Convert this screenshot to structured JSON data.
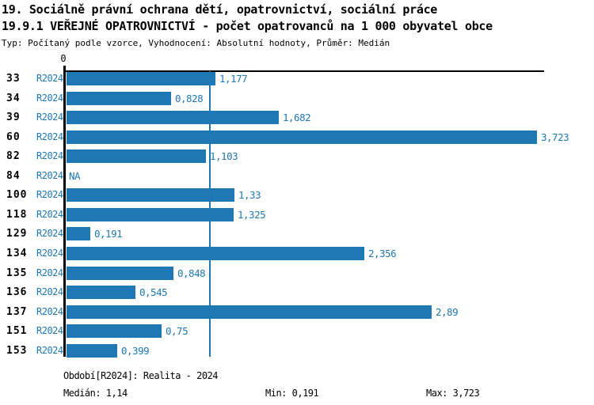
{
  "header": {
    "line1": "19. Sociálně právní ochrana dětí, opatrovnictví, sociální práce",
    "line2": "19.9.1 VEŘEJNÉ OPATROVNICTVÍ - počet opatrovanců na 1 000 obyvatel obce",
    "line3": "Typ: Počítaný podle vzorce, Vyhodnocení: Absolutní hodnoty, Průměr: Medián"
  },
  "chart_data": {
    "type": "bar",
    "orientation": "horizontal",
    "title": "19.9.1 VEŘEJNÉ OPATROVNICTVÍ - počet opatrovanců na 1 000 obyvatel obce",
    "categories": [
      "33",
      "34",
      "39",
      "60",
      "82",
      "84",
      "100",
      "118",
      "129",
      "134",
      "135",
      "136",
      "137",
      "151",
      "153"
    ],
    "series": [
      {
        "name": "R2024",
        "values": [
          1.177,
          0.828,
          1.682,
          3.723,
          1.103,
          null,
          1.33,
          1.325,
          0.191,
          2.356,
          0.848,
          0.545,
          2.89,
          0.75,
          0.399
        ],
        "value_labels": [
          "1,177",
          "0,828",
          "1,682",
          "3,723",
          "1,103",
          "NA",
          "1,33",
          "1,325",
          "0,191",
          "2,356",
          "0,848",
          "0,545",
          "2,89",
          "0,75",
          "0,399"
        ]
      }
    ],
    "xlim": [
      0,
      3.8
    ],
    "zero_tick_label": "0",
    "median_value": 1.14,
    "median_display": "1,14",
    "min_value": 0.191,
    "max_value": 3.723,
    "bar_color": "#1f77b4",
    "median_line_color": "#1f77b4",
    "text_blue": "#1f77b4",
    "legend_position": "bottom",
    "grid": false
  },
  "footer": {
    "period": "Období[R2024]: Realita - 2024",
    "median_label": "Medián: 1,14",
    "min_label": "Min: 0,191",
    "max_label": "Max: 3,723"
  }
}
